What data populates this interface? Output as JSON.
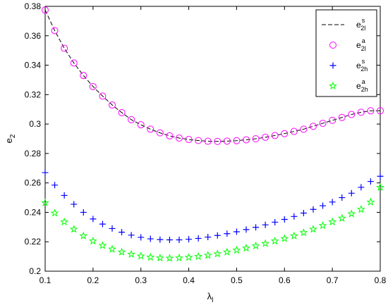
{
  "chart_data": {
    "type": "scatter",
    "title": "",
    "xlabel": {
      "base": "λ",
      "sub": "l"
    },
    "ylabel": {
      "base": "e",
      "sub": "2"
    },
    "xlim": [
      0.1,
      0.8
    ],
    "ylim": [
      0.2,
      0.38
    ],
    "x_ticks": [
      0.1,
      0.2,
      0.3,
      0.4,
      0.5,
      0.6,
      0.7,
      0.8
    ],
    "y_ticks": [
      0.2,
      0.22,
      0.24,
      0.26,
      0.28,
      0.3,
      0.32,
      0.34,
      0.36,
      0.38
    ],
    "x_tick_labels": [
      "0.1",
      "0.2",
      "0.3",
      "0.4",
      "0.5",
      "0.6",
      "0.7",
      "0.8"
    ],
    "y_tick_labels": [
      "0.2",
      "0.22",
      "0.24",
      "0.26",
      "0.28",
      "0.3",
      "0.32",
      "0.34",
      "0.36",
      "0.38"
    ],
    "grid": false,
    "legend_position": "top-right",
    "x": [
      0.1,
      0.12,
      0.14,
      0.16,
      0.18,
      0.2,
      0.22,
      0.24,
      0.26,
      0.28,
      0.3,
      0.32,
      0.34,
      0.36,
      0.38,
      0.4,
      0.42,
      0.44,
      0.46,
      0.48,
      0.5,
      0.52,
      0.54,
      0.56,
      0.58,
      0.6,
      0.62,
      0.64,
      0.66,
      0.68,
      0.7,
      0.72,
      0.74,
      0.76,
      0.78,
      0.8
    ],
    "series": [
      {
        "name": {
          "base": "e",
          "sup": "s",
          "sub": "2l"
        },
        "style": "dashed-line",
        "color": "#000000",
        "values": [
          0.3775,
          0.3635,
          0.3515,
          0.3415,
          0.333,
          0.3255,
          0.319,
          0.313,
          0.3078,
          0.303,
          0.2995,
          0.2965,
          0.294,
          0.292,
          0.2905,
          0.2895,
          0.2888,
          0.2883,
          0.2882,
          0.2884,
          0.2887,
          0.2893,
          0.29,
          0.291,
          0.2922,
          0.2935,
          0.295,
          0.2965,
          0.2985,
          0.3005,
          0.3025,
          0.3045,
          0.3065,
          0.308,
          0.309,
          0.309
        ]
      },
      {
        "name": {
          "base": "e",
          "sup": "a",
          "sub": "2l"
        },
        "style": "circle",
        "color": "#ff00ff",
        "values": [
          0.3775,
          0.3635,
          0.3515,
          0.3415,
          0.333,
          0.3255,
          0.319,
          0.313,
          0.3078,
          0.303,
          0.2995,
          0.2965,
          0.294,
          0.292,
          0.2905,
          0.2895,
          0.2888,
          0.2883,
          0.2882,
          0.2884,
          0.2887,
          0.2893,
          0.29,
          0.291,
          0.2922,
          0.2935,
          0.295,
          0.2965,
          0.2985,
          0.3005,
          0.3025,
          0.3045,
          0.3065,
          0.308,
          0.309,
          0.309
        ]
      },
      {
        "name": {
          "base": "e",
          "sup": "s",
          "sub": "2h"
        },
        "style": "plus",
        "color": "#0000ff",
        "values": [
          0.267,
          0.2585,
          0.2515,
          0.2455,
          0.24,
          0.2355,
          0.232,
          0.229,
          0.2265,
          0.2245,
          0.223,
          0.222,
          0.2215,
          0.2213,
          0.2213,
          0.2217,
          0.2223,
          0.2232,
          0.2243,
          0.2255,
          0.2268,
          0.2283,
          0.2298,
          0.2315,
          0.2333,
          0.2352,
          0.2372,
          0.2395,
          0.242,
          0.2445,
          0.247,
          0.25,
          0.253,
          0.257,
          0.261,
          0.2645
        ]
      },
      {
        "name": {
          "base": "e",
          "sup": "a",
          "sub": "2h"
        },
        "style": "star",
        "color": "#00ff00",
        "values": [
          0.2465,
          0.2395,
          0.2335,
          0.2285,
          0.224,
          0.2205,
          0.2175,
          0.215,
          0.213,
          0.2115,
          0.2103,
          0.2095,
          0.209,
          0.2088,
          0.209,
          0.2094,
          0.21,
          0.2108,
          0.2118,
          0.213,
          0.2143,
          0.2157,
          0.2172,
          0.2188,
          0.2205,
          0.2222,
          0.224,
          0.2262,
          0.2285,
          0.231,
          0.2335,
          0.236,
          0.239,
          0.242,
          0.247,
          0.257
        ]
      }
    ]
  }
}
